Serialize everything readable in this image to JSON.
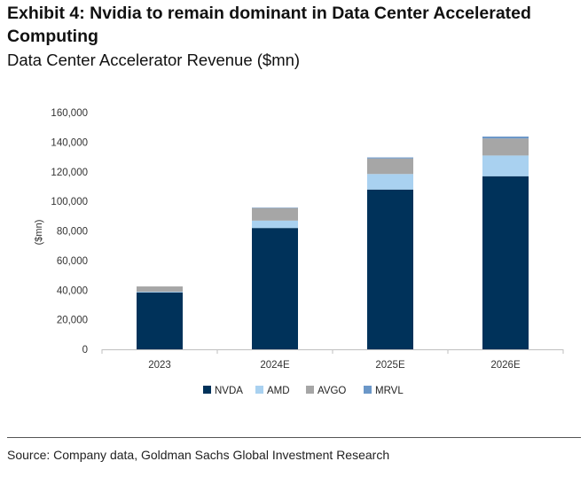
{
  "exhibit_title": "Exhibit 4: Nvidia to remain dominant in Data Center Accelerated Computing",
  "source": "Source: Company data, Goldman Sachs Global Investment Research",
  "chart_data": {
    "type": "bar",
    "stacked": true,
    "title": "Data Center Accelerator Revenue ($mn)",
    "xlabel": "",
    "ylabel": "($mn)",
    "ylim": [
      0,
      160000
    ],
    "yticks": [
      0,
      20000,
      40000,
      60000,
      80000,
      100000,
      120000,
      140000,
      160000
    ],
    "ytick_labels": [
      "0",
      "20,000",
      "40,000",
      "60,000",
      "80,000",
      "100,000",
      "120,000",
      "140,000",
      "160,000"
    ],
    "categories": [
      "2023",
      "2024E",
      "2025E",
      "2026E"
    ],
    "series": [
      {
        "name": "NVDA",
        "color": "#00325a",
        "values": [
          38500,
          82000,
          108000,
          117000
        ]
      },
      {
        "name": "AMD",
        "color": "#a9d1f0",
        "values": [
          500,
          5000,
          10500,
          14000
        ]
      },
      {
        "name": "AVGO",
        "color": "#a6a6a6",
        "values": [
          3500,
          8500,
          10500,
          11500
        ]
      },
      {
        "name": "MRVL",
        "color": "#6b97c8",
        "values": [
          0,
          300,
          700,
          1300
        ]
      }
    ],
    "grid": false,
    "legend": "bottom"
  }
}
